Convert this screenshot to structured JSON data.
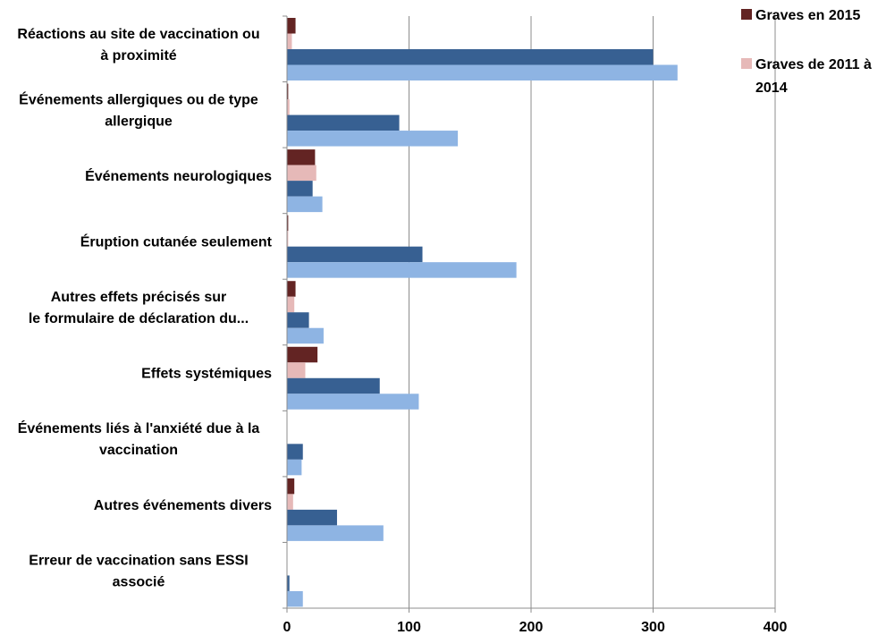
{
  "chart_data": {
    "type": "bar",
    "orientation": "horizontal",
    "categories": [
      [
        "Réactions au site de vaccination ou",
        "à proximité"
      ],
      [
        "Événements allergiques ou de type",
        "allergique"
      ],
      [
        "Événements neurologiques"
      ],
      [
        "Éruption cutanée seulement"
      ],
      [
        "Autres effets précisés sur",
        "le formulaire de déclaration du..."
      ],
      [
        "Effets systémiques"
      ],
      [
        "Événements liés à l'anxiété due à la",
        "vaccination"
      ],
      [
        "Autres événements divers"
      ],
      [
        "Erreur de vaccination sans ESSI",
        "associé"
      ]
    ],
    "series": [
      {
        "name": "Graves en 2015",
        "color": "#632423",
        "values": [
          7,
          1,
          23,
          1,
          7,
          25,
          0,
          6,
          0
        ]
      },
      {
        "name": "Graves de 2011 à 2014",
        "color": "#E6B9B8",
        "values": [
          4,
          2,
          24,
          1,
          6,
          15,
          0,
          5,
          0
        ]
      },
      {
        "name": "",
        "color": "#376092",
        "values": [
          300,
          92,
          21,
          111,
          18,
          76,
          13,
          41,
          2
        ]
      },
      {
        "name": "",
        "color": "#8EB4E3",
        "values": [
          320,
          140,
          29,
          188,
          30,
          108,
          12,
          79,
          13
        ]
      }
    ],
    "xlim": [
      0,
      400
    ],
    "xticks": [
      "0",
      "100",
      "200",
      "300",
      "400"
    ],
    "grid": true,
    "legend": {
      "placement": "top-right",
      "entries": [
        {
          "label": [
            "Graves en 2015"
          ],
          "color": "#632423"
        },
        {
          "label": [
            "Graves de 2011 à",
            "2014"
          ],
          "color": "#E6B9B8"
        }
      ]
    }
  }
}
